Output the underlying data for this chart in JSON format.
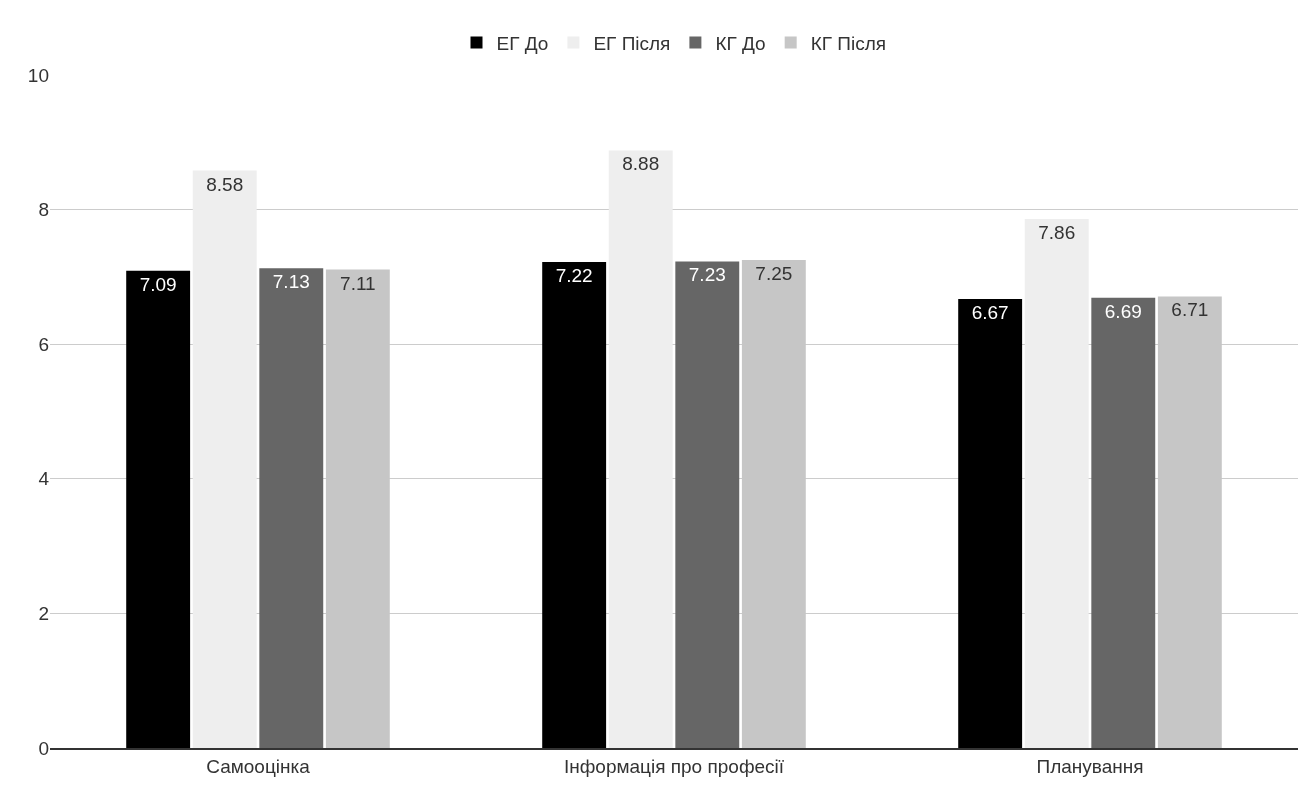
{
  "chart_data": {
    "type": "bar",
    "categories": [
      "Самооцінка",
      "Інформація про професії",
      "Планування"
    ],
    "series": [
      {
        "name": "ЕГ До",
        "color": "#000000",
        "values": [
          7.09,
          7.22,
          6.67
        ]
      },
      {
        "name": "ЕГ Після",
        "color": "#eeeeee",
        "values": [
          8.58,
          8.88,
          7.86
        ]
      },
      {
        "name": "КГ До",
        "color": "#666666",
        "values": [
          7.13,
          7.23,
          6.69
        ]
      },
      {
        "name": "КГ Після",
        "color": "#c6c6c6",
        "values": [
          7.11,
          7.25,
          6.71
        ]
      }
    ],
    "ylim": [
      0,
      10
    ],
    "yticks": [
      0,
      2,
      4,
      6,
      8,
      10
    ],
    "grid": "y",
    "legend": "top",
    "data_labels": true
  }
}
